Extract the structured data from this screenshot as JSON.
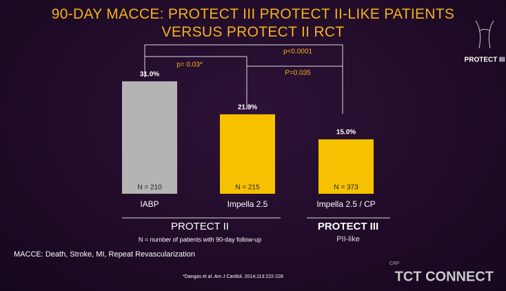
{
  "chart_data": {
    "type": "bar",
    "title": "90-DAY MACCE: PROTECT III PROTECT II-LIKE PATIENTS VERSUS PROTECT II RCT",
    "categories": [
      "IABP",
      "Impella 2.5",
      "Impella 2.5 / CP"
    ],
    "values": [
      31.0,
      21.9,
      15.0
    ],
    "value_labels": [
      "31.0%",
      "21.9%",
      "15.0%"
    ],
    "colors": [
      "#b4b4b4",
      "#f6c200",
      "#f6c200"
    ],
    "sample_sizes": [
      "N = 210",
      "N = 215",
      "N = 373"
    ],
    "comparisons": [
      "p= 0.03*",
      "p<0.0001",
      "P=0.035"
    ],
    "groups": [
      {
        "name": "PROTECT II"
      },
      {
        "name": "PROTECT III",
        "subtitle": "PII-like"
      }
    ],
    "note": "N = number of patients with 90-day follow-up",
    "definition": "MACCE: Death, Stroke, MI, Repeat Revascularization",
    "footnote": "*Dangas et al. Am J Cardiol. 2014;113:222-228"
  },
  "branding": {
    "logo": "PROTECT III",
    "org": "CRF",
    "event": "TCT CONNECT"
  }
}
